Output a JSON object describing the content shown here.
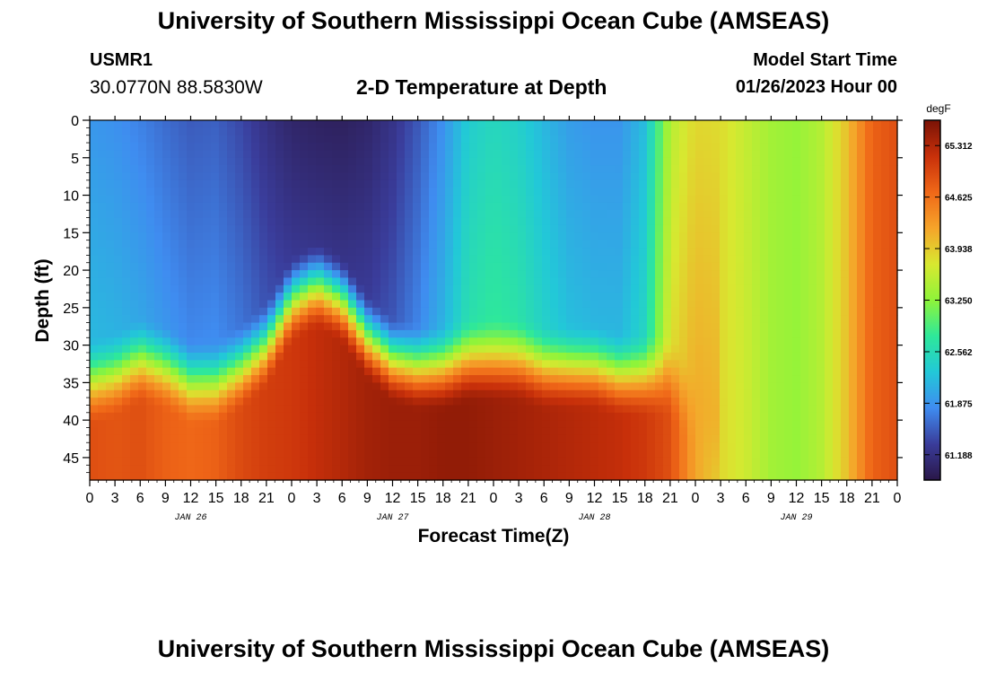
{
  "header": {
    "title": "University of Southern Mississippi Ocean Cube (AMSEAS)",
    "station_id": "USMR1",
    "station_coords": "30.0770N  88.5830W",
    "chart_title": "2-D Temperature at Depth",
    "model_start_label": "Model Start Time",
    "model_start_value": "01/26/2023 Hour 00"
  },
  "footer": {
    "title": "University of Southern Mississippi Ocean Cube (AMSEAS)"
  },
  "chart_data": {
    "type": "heatmap",
    "title": "2-D Temperature at Depth",
    "xlabel": "Forecast Time(Z)",
    "ylabel": "Depth (ft)",
    "x_hours_range": [
      0,
      96
    ],
    "x_tick_labels": [
      "0",
      "3",
      "6",
      "9",
      "12",
      "15",
      "18",
      "21",
      "0",
      "3",
      "6",
      "9",
      "12",
      "15",
      "18",
      "21",
      "0",
      "3",
      "6",
      "9",
      "12",
      "15",
      "18",
      "21",
      "0",
      "3",
      "6",
      "9",
      "12",
      "15",
      "18",
      "21",
      "0"
    ],
    "day_labels": [
      "JAN 26",
      "JAN 27",
      "JAN 28",
      "JAN 29"
    ],
    "ylim": [
      0,
      48
    ],
    "y_tick_values": [
      0,
      5,
      10,
      15,
      20,
      25,
      30,
      35,
      40,
      45
    ],
    "y_tick_labels": [
      "0",
      "5",
      "10",
      "15",
      "20",
      "25",
      "30",
      "35",
      "40",
      "45"
    ],
    "colorbar": {
      "unit": "degF",
      "range": [
        60.85,
        65.65
      ],
      "tick_values": [
        61.188,
        61.875,
        62.562,
        63.25,
        63.938,
        64.625,
        65.312
      ],
      "tick_labels": [
        "61.188",
        "61.875",
        "62.562",
        "63.250",
        "63.938",
        "64.625",
        "65.312"
      ],
      "colors": [
        "#2a1748",
        "#3a3c9a",
        "#3f8cf0",
        "#22c8d8",
        "#2ee89a",
        "#8ef43a",
        "#d8e830",
        "#f5a42a",
        "#f06818",
        "#c8300a",
        "#7a1306"
      ]
    },
    "surface_temperature_by_hour": [
      [
        0,
        61.9
      ],
      [
        3,
        61.85
      ],
      [
        6,
        61.75
      ],
      [
        9,
        61.62
      ],
      [
        12,
        61.52
      ],
      [
        15,
        61.55
      ],
      [
        18,
        61.4
      ],
      [
        21,
        61.2
      ],
      [
        24,
        61.05
      ],
      [
        27,
        61.0
      ],
      [
        30,
        60.98
      ],
      [
        33,
        61.05
      ],
      [
        36,
        61.22
      ],
      [
        39,
        61.5
      ],
      [
        42,
        61.85
      ],
      [
        45,
        62.35
      ],
      [
        48,
        62.5
      ],
      [
        51,
        62.4
      ],
      [
        54,
        62.15
      ],
      [
        57,
        61.95
      ],
      [
        60,
        61.88
      ],
      [
        63,
        61.88
      ],
      [
        66,
        62.2
      ],
      [
        69,
        63.5
      ],
      [
        72,
        63.85
      ],
      [
        75,
        63.82
      ],
      [
        78,
        63.6
      ],
      [
        81,
        63.38
      ],
      [
        84,
        63.3
      ],
      [
        87,
        63.5
      ],
      [
        90,
        64.0
      ],
      [
        93,
        64.75
      ],
      [
        96,
        64.9
      ]
    ],
    "bottom_layer_depth_ft_by_hour": [
      [
        0,
        38
      ],
      [
        3,
        37
      ],
      [
        6,
        35
      ],
      [
        9,
        36
      ],
      [
        12,
        38
      ],
      [
        15,
        38
      ],
      [
        18,
        36
      ],
      [
        21,
        33
      ],
      [
        24,
        27
      ],
      [
        27,
        25
      ],
      [
        30,
        27
      ],
      [
        33,
        32
      ],
      [
        36,
        35
      ],
      [
        39,
        36
      ],
      [
        42,
        36
      ],
      [
        45,
        35
      ],
      [
        48,
        35
      ],
      [
        51,
        35
      ],
      [
        54,
        36
      ],
      [
        57,
        36
      ],
      [
        60,
        36
      ],
      [
        63,
        37
      ],
      [
        66,
        37
      ],
      [
        69,
        37
      ],
      [
        72,
        42
      ],
      [
        75,
        48
      ],
      [
        78,
        48
      ],
      [
        81,
        48
      ],
      [
        84,
        48
      ],
      [
        87,
        48
      ],
      [
        90,
        48
      ],
      [
        93,
        48
      ],
      [
        96,
        48
      ]
    ],
    "bottom_temperature_by_hour": [
      [
        0,
        64.9
      ],
      [
        3,
        64.85
      ],
      [
        6,
        64.9
      ],
      [
        9,
        64.75
      ],
      [
        12,
        64.7
      ],
      [
        15,
        64.75
      ],
      [
        18,
        64.95
      ],
      [
        21,
        65.05
      ],
      [
        24,
        65.1
      ],
      [
        27,
        65.2
      ],
      [
        30,
        65.3
      ],
      [
        33,
        65.4
      ],
      [
        36,
        65.45
      ],
      [
        39,
        65.45
      ],
      [
        42,
        65.5
      ],
      [
        45,
        65.5
      ],
      [
        48,
        65.45
      ],
      [
        51,
        65.4
      ],
      [
        54,
        65.35
      ],
      [
        57,
        65.3
      ],
      [
        60,
        65.25
      ],
      [
        63,
        65.2
      ],
      [
        66,
        65.1
      ],
      [
        69,
        64.9
      ],
      [
        72,
        64.2
      ],
      [
        75,
        63.9
      ],
      [
        78,
        63.8
      ],
      [
        81,
        63.4
      ],
      [
        84,
        63.3
      ],
      [
        87,
        63.5
      ],
      [
        90,
        64.0
      ],
      [
        93,
        64.75
      ],
      [
        96,
        64.9
      ]
    ]
  }
}
